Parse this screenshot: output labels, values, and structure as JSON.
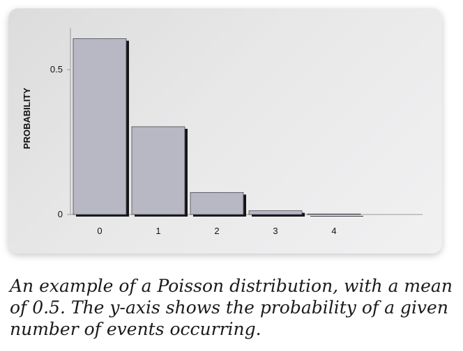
{
  "chart_data": {
    "type": "bar",
    "categories": [
      "0",
      "1",
      "2",
      "3",
      "4"
    ],
    "values": [
      0.607,
      0.303,
      0.076,
      0.013,
      0.002
    ],
    "ylabel": "PROBABILITY",
    "yticks": [
      {
        "value": 0,
        "label": "0"
      },
      {
        "value": 0.5,
        "label": "0.5"
      }
    ],
    "ylim": [
      0,
      0.65
    ],
    "grid": false,
    "bar_color": "#b8b8c4",
    "bar_shadow_color": "#151515",
    "axis_color": "#9a9a9a"
  },
  "caption": "An example of a Poisson distribution, with a mean of 0.5. The y-axis shows the probability of a given number of events occurring."
}
